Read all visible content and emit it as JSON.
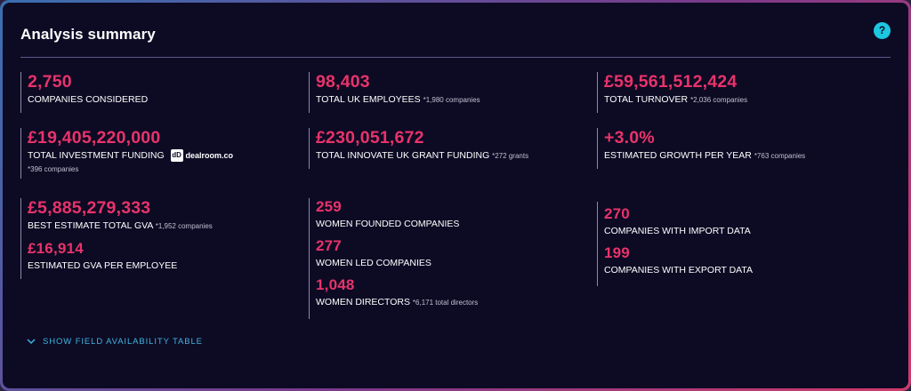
{
  "header": {
    "title": "Analysis summary",
    "help_label": "?"
  },
  "stats": {
    "companies": {
      "value": "2,750",
      "label": "COMPANIES CONSIDERED"
    },
    "employees": {
      "value": "98,403",
      "label": "TOTAL UK EMPLOYEES",
      "note": "*1,980 companies"
    },
    "turnover": {
      "value": "£59,561,512,424",
      "label": "TOTAL TURNOVER",
      "note": "*2,036 companies"
    },
    "investment": {
      "value": "£19,405,220,000",
      "label": "TOTAL INVESTMENT FUNDING",
      "note": "*396 companies",
      "badge_mark": "dD",
      "badge_text": "dealroom.co"
    },
    "grants": {
      "value": "£230,051,672",
      "label": "TOTAL INNOVATE UK GRANT FUNDING",
      "note": "*272 grants"
    },
    "growth": {
      "value": "+3.0%",
      "label": "ESTIMATED GROWTH PER YEAR",
      "note": "*763 companies"
    },
    "gva": {
      "value": "£5,885,279,333",
      "label": "BEST ESTIMATE TOTAL GVA",
      "note": "*1,952 companies"
    },
    "gva_per_employee": {
      "value": "£16,914",
      "label": "ESTIMATED GVA PER EMPLOYEE"
    },
    "women_founded": {
      "value": "259",
      "label": "WOMEN FOUNDED COMPANIES"
    },
    "women_led": {
      "value": "277",
      "label": "WOMEN LED COMPANIES"
    },
    "women_directors": {
      "value": "1,048",
      "label": "WOMEN DIRECTORS",
      "note": "*6,171 total directors"
    },
    "import": {
      "value": "270",
      "label": "COMPANIES WITH IMPORT DATA"
    },
    "export": {
      "value": "199",
      "label": "COMPANIES WITH EXPORT DATA"
    }
  },
  "footer": {
    "toggle_label": "SHOW FIELD AVAILABILITY TABLE"
  },
  "colors": {
    "accent": "#e8336a",
    "link": "#3fb6e0",
    "help": "#1cc7e0",
    "background": "#0d0a24"
  },
  "icons": {
    "help": "question-icon",
    "toggle": "chevron-down-icon",
    "badge": "dealroom-logo-icon"
  }
}
